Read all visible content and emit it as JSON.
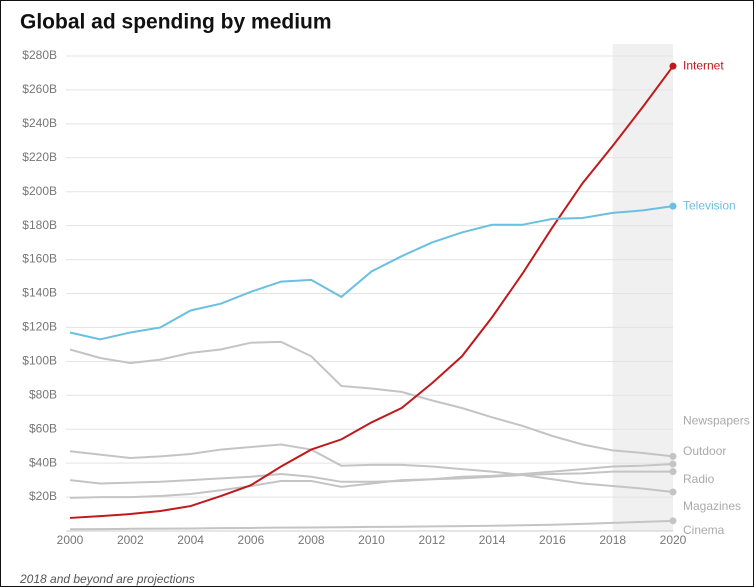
{
  "chart_data": {
    "type": "line",
    "title": "Global ad spending by medium",
    "note": "2018 and beyond are projections",
    "x": [
      2000,
      2001,
      2002,
      2003,
      2004,
      2005,
      2006,
      2007,
      2008,
      2009,
      2010,
      2011,
      2012,
      2013,
      2014,
      2015,
      2016,
      2017,
      2018,
      2019,
      2020
    ],
    "xlim": [
      2000,
      2020
    ],
    "xticks": [
      2000,
      2002,
      2004,
      2006,
      2008,
      2010,
      2012,
      2014,
      2016,
      2018,
      2020
    ],
    "ylim": [
      0,
      280
    ],
    "yticks": [
      {
        "value": 20,
        "label": "$20B"
      },
      {
        "value": 40,
        "label": "$40B"
      },
      {
        "value": 60,
        "label": "$60B"
      },
      {
        "value": 80,
        "label": "$80B"
      },
      {
        "value": 100,
        "label": "$100B"
      },
      {
        "value": 120,
        "label": "$120B"
      },
      {
        "value": 140,
        "label": "$140B"
      },
      {
        "value": 160,
        "label": "$160B"
      },
      {
        "value": 180,
        "label": "$180B"
      },
      {
        "value": 200,
        "label": "$200B"
      },
      {
        "value": 220,
        "label": "$220B"
      },
      {
        "value": 240,
        "label": "$240B"
      },
      {
        "value": 260,
        "label": "$260B"
      },
      {
        "value": 280,
        "label": "$280B"
      }
    ],
    "grid": true,
    "highlight_xrange": [
      2018,
      2020
    ],
    "series": [
      {
        "name": "Internet",
        "color": "#c0191c",
        "values": [
          7.7,
          8.8,
          10,
          11.8,
          14.7,
          20.6,
          27,
          38,
          48,
          54,
          64,
          72.5,
          87,
          103,
          126,
          151.5,
          179,
          205,
          227,
          250,
          274
        ]
      },
      {
        "name": "Television",
        "color": "#6bbfe0",
        "values": [
          117,
          113,
          117,
          120,
          130,
          134,
          141,
          147,
          148,
          138,
          153,
          162,
          170,
          176,
          180.5,
          180.5,
          184,
          184.5,
          187.5,
          189,
          191.5
        ]
      },
      {
        "name": "Newspapers",
        "color": "#c4c4c4",
        "values": [
          107,
          102,
          99,
          101,
          105,
          107,
          111,
          111.5,
          103,
          85.5,
          84,
          82,
          77,
          72.5,
          67,
          62,
          56,
          51,
          47.5,
          46,
          44
        ]
      },
      {
        "name": "Outdoor",
        "color": "#c4c4c4",
        "values": [
          19.5,
          20,
          20,
          20.6,
          21.8,
          24,
          26.5,
          29.5,
          29.5,
          26,
          28,
          30,
          30.5,
          32,
          32.5,
          33.6,
          35,
          36.5,
          38,
          38.5,
          39.5
        ]
      },
      {
        "name": "Radio",
        "color": "#c4c4c4",
        "values": [
          30,
          28,
          28.5,
          29,
          30,
          31,
          32,
          33.6,
          32,
          29,
          29,
          29.5,
          30.5,
          31,
          32,
          33,
          33.6,
          34,
          35,
          35,
          35
        ]
      },
      {
        "name": "Magazines",
        "color": "#c4c4c4",
        "values": [
          47,
          45,
          43,
          44,
          45.4,
          48,
          49.5,
          51,
          48,
          38.5,
          39,
          39,
          38,
          36.5,
          35,
          33,
          30.5,
          28,
          26.5,
          25,
          23
        ]
      },
      {
        "name": "Cinema",
        "color": "#c4c4c4",
        "values": [
          1,
          1.1,
          1.3,
          1.4,
          1.5,
          1.7,
          1.8,
          2,
          2.1,
          2.2,
          2.4,
          2.5,
          2.7,
          2.9,
          3.1,
          3.4,
          3.7,
          4.2,
          4.8,
          5.4,
          6
        ]
      }
    ]
  }
}
